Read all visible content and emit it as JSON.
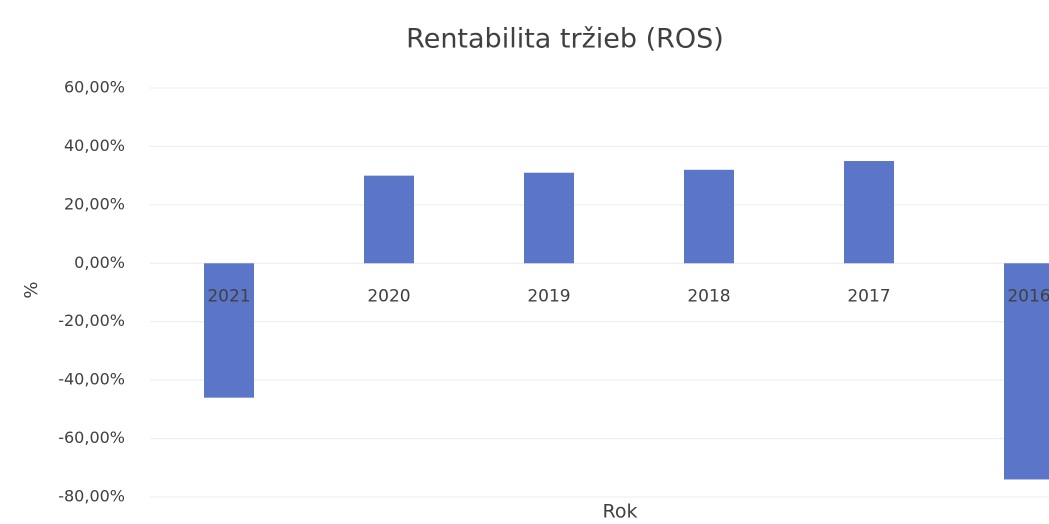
{
  "chart_data": {
    "type": "bar",
    "title": "Rentabilita tržieb (ROS)",
    "x_label": "Rok",
    "y_label": "%",
    "categories": [
      "2021",
      "2020",
      "2019",
      "2018",
      "2017",
      "2016"
    ],
    "values": [
      -46,
      30,
      31,
      32,
      35,
      -74
    ],
    "color": "#5b76c8",
    "ylim": [
      -80,
      60
    ],
    "yticks": [
      {
        "value": -80,
        "label": "-80,00%"
      },
      {
        "value": -60,
        "label": "-60,00%"
      },
      {
        "value": -40,
        "label": "-40,00%"
      },
      {
        "value": -20,
        "label": "-20,00%"
      },
      {
        "value": 0,
        "label": "0,00%"
      },
      {
        "value": 20,
        "label": "20,00%"
      },
      {
        "value": 40,
        "label": "40,00%"
      },
      {
        "value": 60,
        "label": "60,00%"
      }
    ],
    "grid": true
  }
}
